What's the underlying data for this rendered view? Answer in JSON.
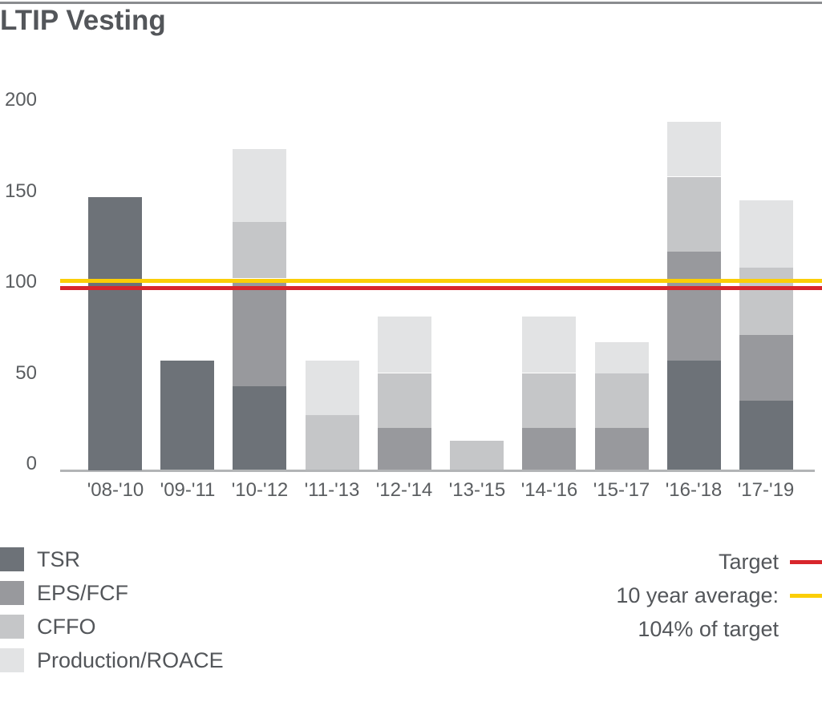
{
  "page": {
    "title": "LTIP Vesting"
  },
  "colors": {
    "text": "#53565a",
    "axis_text": "#5a5d60",
    "axis_line": "#b2b4b6",
    "top_rule": "#8a8c8f",
    "target_red": "#d8262c",
    "average_yellow": "#fbce07"
  },
  "chart_data": {
    "type": "bar",
    "stacked": true,
    "title": "LTIP Vesting",
    "xlabel": "",
    "ylabel": "",
    "ylim": [
      0,
      215
    ],
    "grid": false,
    "yticks": [
      0,
      50,
      100,
      150,
      200
    ],
    "categories": [
      "'08-'10",
      "'09-'11",
      "'10-'12",
      "'11-'13",
      "'12-'14",
      "'13-'15",
      "'14-'16",
      "'15-'17",
      "'16-'18",
      "'17-'19"
    ],
    "series": [
      {
        "name": "TSR",
        "color": "#6d7278",
        "values": [
          150,
          60,
          46,
          0,
          0,
          0,
          0,
          0,
          60,
          38
        ]
      },
      {
        "name": "EPS/FCF",
        "color": "#98999d",
        "values": [
          0,
          0,
          59,
          0,
          23,
          0,
          23,
          23,
          60,
          36
        ]
      },
      {
        "name": "CFFO",
        "color": "#c5c6c8",
        "values": [
          0,
          0,
          31,
          30,
          30,
          16,
          30,
          30,
          41,
          37
        ]
      },
      {
        "name": "Production/ROACE",
        "color": "#e2e3e4",
        "values": [
          0,
          0,
          40,
          30,
          31,
          0,
          31,
          17,
          30,
          37
        ]
      }
    ],
    "totals": [
      150,
      60,
      176,
      60,
      84,
      16,
      84,
      70,
      191,
      148
    ],
    "lines": [
      {
        "name": "Target",
        "value": 100,
        "color": "#d8262c"
      },
      {
        "name": "10 year average",
        "value": 104,
        "color": "#fbce07"
      }
    ],
    "legend_left": [
      "TSR",
      "EPS/FCF",
      "CFFO",
      "Production/ROACE"
    ],
    "legend_right": [
      {
        "label": "Target",
        "swatch": "#d8262c"
      },
      {
        "label": "10 year average:",
        "swatch": "#fbce07"
      },
      {
        "label": "104% of target",
        "swatch": null
      }
    ],
    "legend_position": "below"
  }
}
